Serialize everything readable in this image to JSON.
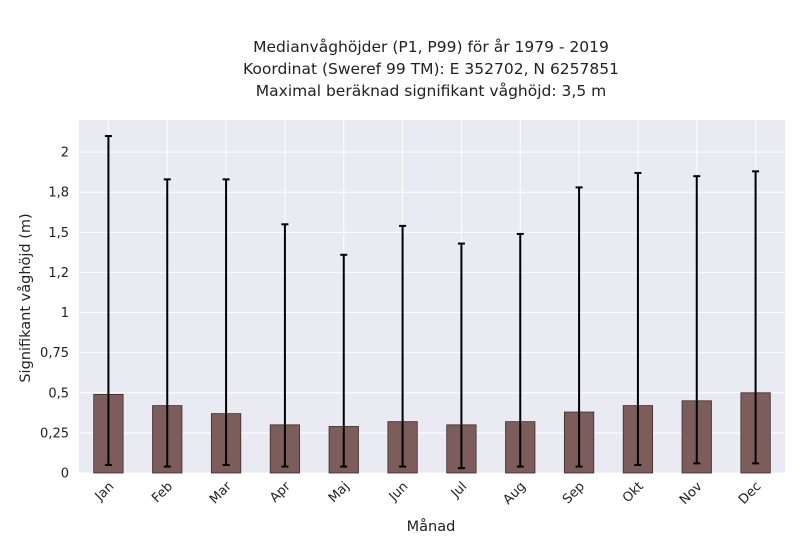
{
  "chart_data": {
    "type": "bar",
    "title_lines": [
      "Medianvåghöjder (P1, P99) för år 1979 - 2019",
      "Koordinat (Sweref 99 TM): E 352702, N 6257851",
      "Maximal beräknad signifikant våghöjd: 3,5 m"
    ],
    "xlabel": "Månad",
    "ylabel": "Signifikant våghöjd (m)",
    "categories": [
      "Jan",
      "Feb",
      "Mar",
      "Apr",
      "Maj",
      "Jun",
      "Jul",
      "Aug",
      "Sep",
      "Okt",
      "Nov",
      "Dec"
    ],
    "values": [
      0.49,
      0.42,
      0.37,
      0.3,
      0.29,
      0.32,
      0.3,
      0.32,
      0.38,
      0.42,
      0.45,
      0.5
    ],
    "p1": [
      0.05,
      0.04,
      0.05,
      0.04,
      0.04,
      0.04,
      0.03,
      0.04,
      0.04,
      0.05,
      0.06,
      0.06
    ],
    "p99": [
      2.1,
      1.83,
      1.83,
      1.55,
      1.36,
      1.54,
      1.43,
      1.49,
      1.78,
      1.87,
      1.85,
      1.88
    ],
    "ylim": [
      0,
      2.2
    ],
    "yticks": [
      0,
      0.25,
      0.5,
      0.75,
      1,
      1.25,
      1.5,
      1.75,
      2
    ],
    "ytick_labels": [
      "0",
      "0,25",
      "0,5",
      "0,75",
      "1",
      "1,2",
      "1,5",
      "1,8",
      "2"
    ],
    "colors": {
      "bar": "#7d5c5c",
      "bar_edge": "#3d2a2a",
      "errorbar": "#000000",
      "plot_bg": "#eaeaf2",
      "grid": "#ffffff"
    },
    "grid": true,
    "legend": "none"
  }
}
